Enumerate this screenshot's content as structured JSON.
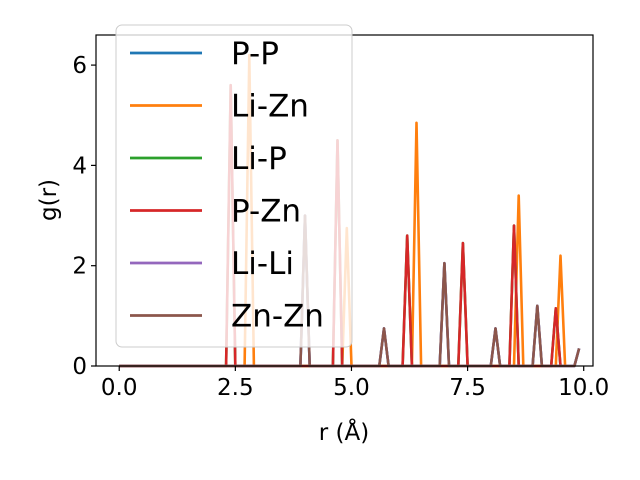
{
  "chart_data": {
    "type": "line",
    "title": "",
    "xlabel": "r (Å)",
    "ylabel": "g(r)",
    "xlim": [
      -0.5,
      10.2
    ],
    "ylim": [
      0,
      6.6
    ],
    "xticks": [
      "0.0",
      "2.5",
      "5.0",
      "7.5",
      "10.0"
    ],
    "yticks": [
      "0",
      "2",
      "4",
      "6"
    ],
    "legend_position": "top-left",
    "grid": false,
    "series": [
      {
        "name": "P-P",
        "color": "#1f77b4",
        "points": [
          [
            0,
            0
          ],
          [
            3.9,
            0
          ],
          [
            4.0,
            3.0
          ],
          [
            4.1,
            0
          ],
          [
            5.6,
            0
          ],
          [
            5.7,
            0.75
          ],
          [
            5.8,
            0
          ],
          [
            6.9,
            0
          ],
          [
            7.0,
            2.05
          ],
          [
            7.1,
            0
          ],
          [
            8.0,
            0
          ],
          [
            8.1,
            0.75
          ],
          [
            8.2,
            0
          ],
          [
            8.9,
            0
          ],
          [
            9.0,
            1.2
          ],
          [
            9.1,
            0
          ],
          [
            9.8,
            0
          ],
          [
            9.9,
            0.35
          ]
        ]
      },
      {
        "name": "Li-Zn",
        "color": "#ff7f0e",
        "points": [
          [
            0,
            0
          ],
          [
            2.7,
            0
          ],
          [
            2.8,
            6.2
          ],
          [
            2.9,
            0
          ],
          [
            4.8,
            0
          ],
          [
            4.9,
            2.75
          ],
          [
            5.0,
            0
          ],
          [
            6.3,
            0
          ],
          [
            6.4,
            4.85
          ],
          [
            6.5,
            0
          ],
          [
            8.5,
            0
          ],
          [
            8.6,
            3.4
          ],
          [
            8.7,
            0
          ],
          [
            9.4,
            0
          ],
          [
            9.5,
            2.2
          ],
          [
            9.6,
            0
          ]
        ]
      },
      {
        "name": "Li-P",
        "color": "#2ca02c",
        "points": [
          [
            0,
            0
          ],
          [
            2.3,
            0
          ],
          [
            2.4,
            5.6
          ],
          [
            2.5,
            0
          ],
          [
            4.6,
            0
          ],
          [
            4.7,
            4.5
          ],
          [
            4.8,
            0
          ],
          [
            6.1,
            0
          ],
          [
            6.2,
            2.6
          ],
          [
            6.3,
            0
          ],
          [
            7.3,
            0
          ],
          [
            7.4,
            2.45
          ],
          [
            7.5,
            0
          ],
          [
            8.4,
            0
          ],
          [
            8.5,
            2.8
          ],
          [
            8.6,
            0
          ],
          [
            9.3,
            0
          ],
          [
            9.4,
            1.15
          ],
          [
            9.5,
            0
          ]
        ]
      },
      {
        "name": "P-Zn",
        "color": "#d62728",
        "points": [
          [
            0,
            0
          ],
          [
            2.3,
            0
          ],
          [
            2.4,
            5.6
          ],
          [
            2.5,
            0
          ],
          [
            4.6,
            0
          ],
          [
            4.7,
            4.5
          ],
          [
            4.8,
            0
          ],
          [
            6.1,
            0
          ],
          [
            6.2,
            2.6
          ],
          [
            6.3,
            0
          ],
          [
            7.3,
            0
          ],
          [
            7.4,
            2.45
          ],
          [
            7.5,
            0
          ],
          [
            8.4,
            0
          ],
          [
            8.5,
            2.8
          ],
          [
            8.6,
            0
          ],
          [
            9.3,
            0
          ],
          [
            9.4,
            1.15
          ],
          [
            9.5,
            0
          ]
        ]
      },
      {
        "name": "Li-Li",
        "color": "#9467bd",
        "points": [
          [
            0,
            0
          ],
          [
            3.9,
            0
          ],
          [
            4.0,
            3.0
          ],
          [
            4.1,
            0
          ],
          [
            5.6,
            0
          ],
          [
            5.7,
            0.75
          ],
          [
            5.8,
            0
          ],
          [
            6.9,
            0
          ],
          [
            7.0,
            2.05
          ],
          [
            7.1,
            0
          ],
          [
            8.0,
            0
          ],
          [
            8.1,
            0.75
          ],
          [
            8.2,
            0
          ],
          [
            8.9,
            0
          ],
          [
            9.0,
            1.2
          ],
          [
            9.1,
            0
          ],
          [
            9.8,
            0
          ],
          [
            9.9,
            0.35
          ]
        ]
      },
      {
        "name": "Zn-Zn",
        "color": "#8c564b",
        "points": [
          [
            0,
            0
          ],
          [
            3.9,
            0
          ],
          [
            4.0,
            3.0
          ],
          [
            4.1,
            0
          ],
          [
            5.6,
            0
          ],
          [
            5.7,
            0.75
          ],
          [
            5.8,
            0
          ],
          [
            6.9,
            0
          ],
          [
            7.0,
            2.05
          ],
          [
            7.1,
            0
          ],
          [
            8.0,
            0
          ],
          [
            8.1,
            0.75
          ],
          [
            8.2,
            0
          ],
          [
            8.9,
            0
          ],
          [
            9.0,
            1.2
          ],
          [
            9.1,
            0
          ],
          [
            9.8,
            0
          ],
          [
            9.9,
            0.35
          ]
        ]
      }
    ]
  }
}
